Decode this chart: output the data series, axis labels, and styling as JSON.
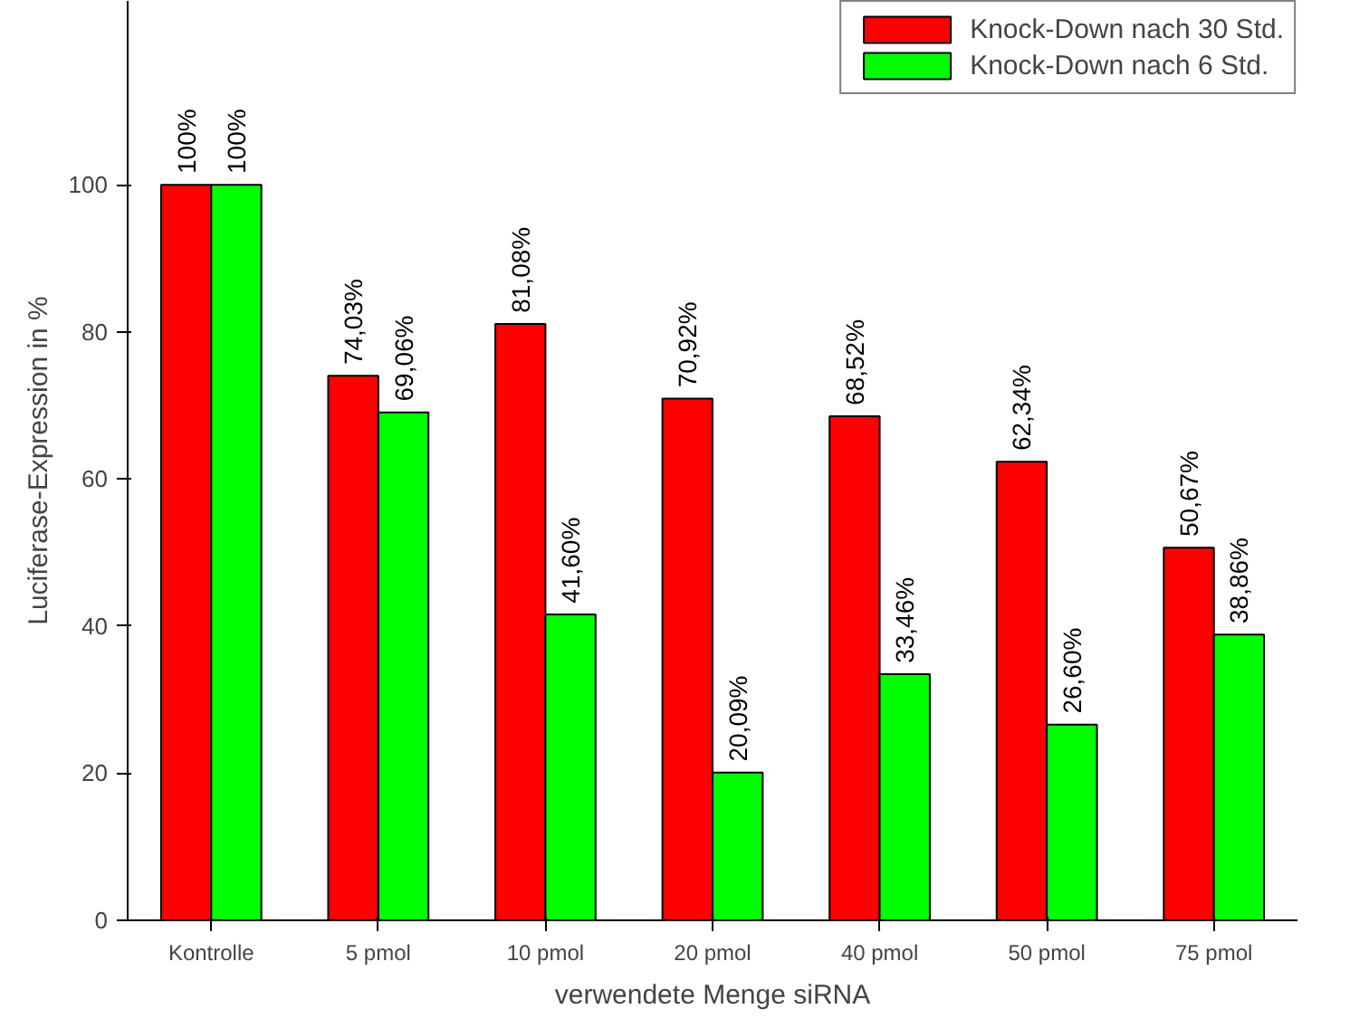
{
  "chart_data": {
    "type": "bar",
    "xlabel": "verwendete Menge siRNA",
    "ylabel": "Luciferase-Expression in %",
    "categories": [
      "Kontrolle",
      "5 pmol",
      "10 pmol",
      "20 pmol",
      "40 pmol",
      "50 pmol",
      "75 pmol"
    ],
    "series": [
      {
        "name": "Knock-Down nach 30 Std.",
        "color": "#ff0000",
        "values": [
          100,
          74.03,
          81.08,
          70.92,
          68.52,
          62.34,
          50.67
        ],
        "value_labels": [
          "100%",
          "74,03%",
          "81,08%",
          "70,92%",
          "68,52%",
          "62,34%",
          "50,67%"
        ]
      },
      {
        "name": "Knock-Down nach 6 Std.",
        "color": "#00ff00",
        "values": [
          100,
          69.06,
          41.6,
          20.09,
          33.46,
          26.6,
          38.86
        ],
        "value_labels": [
          "100%",
          "69,06%",
          "41,60%",
          "20,09%",
          "33,46%",
          "26,60%",
          "38,86%"
        ]
      }
    ],
    "ylim": [
      0,
      125
    ],
    "yticks": [
      0,
      20,
      40,
      60,
      80,
      100
    ],
    "grid": false,
    "legend": "top right"
  }
}
